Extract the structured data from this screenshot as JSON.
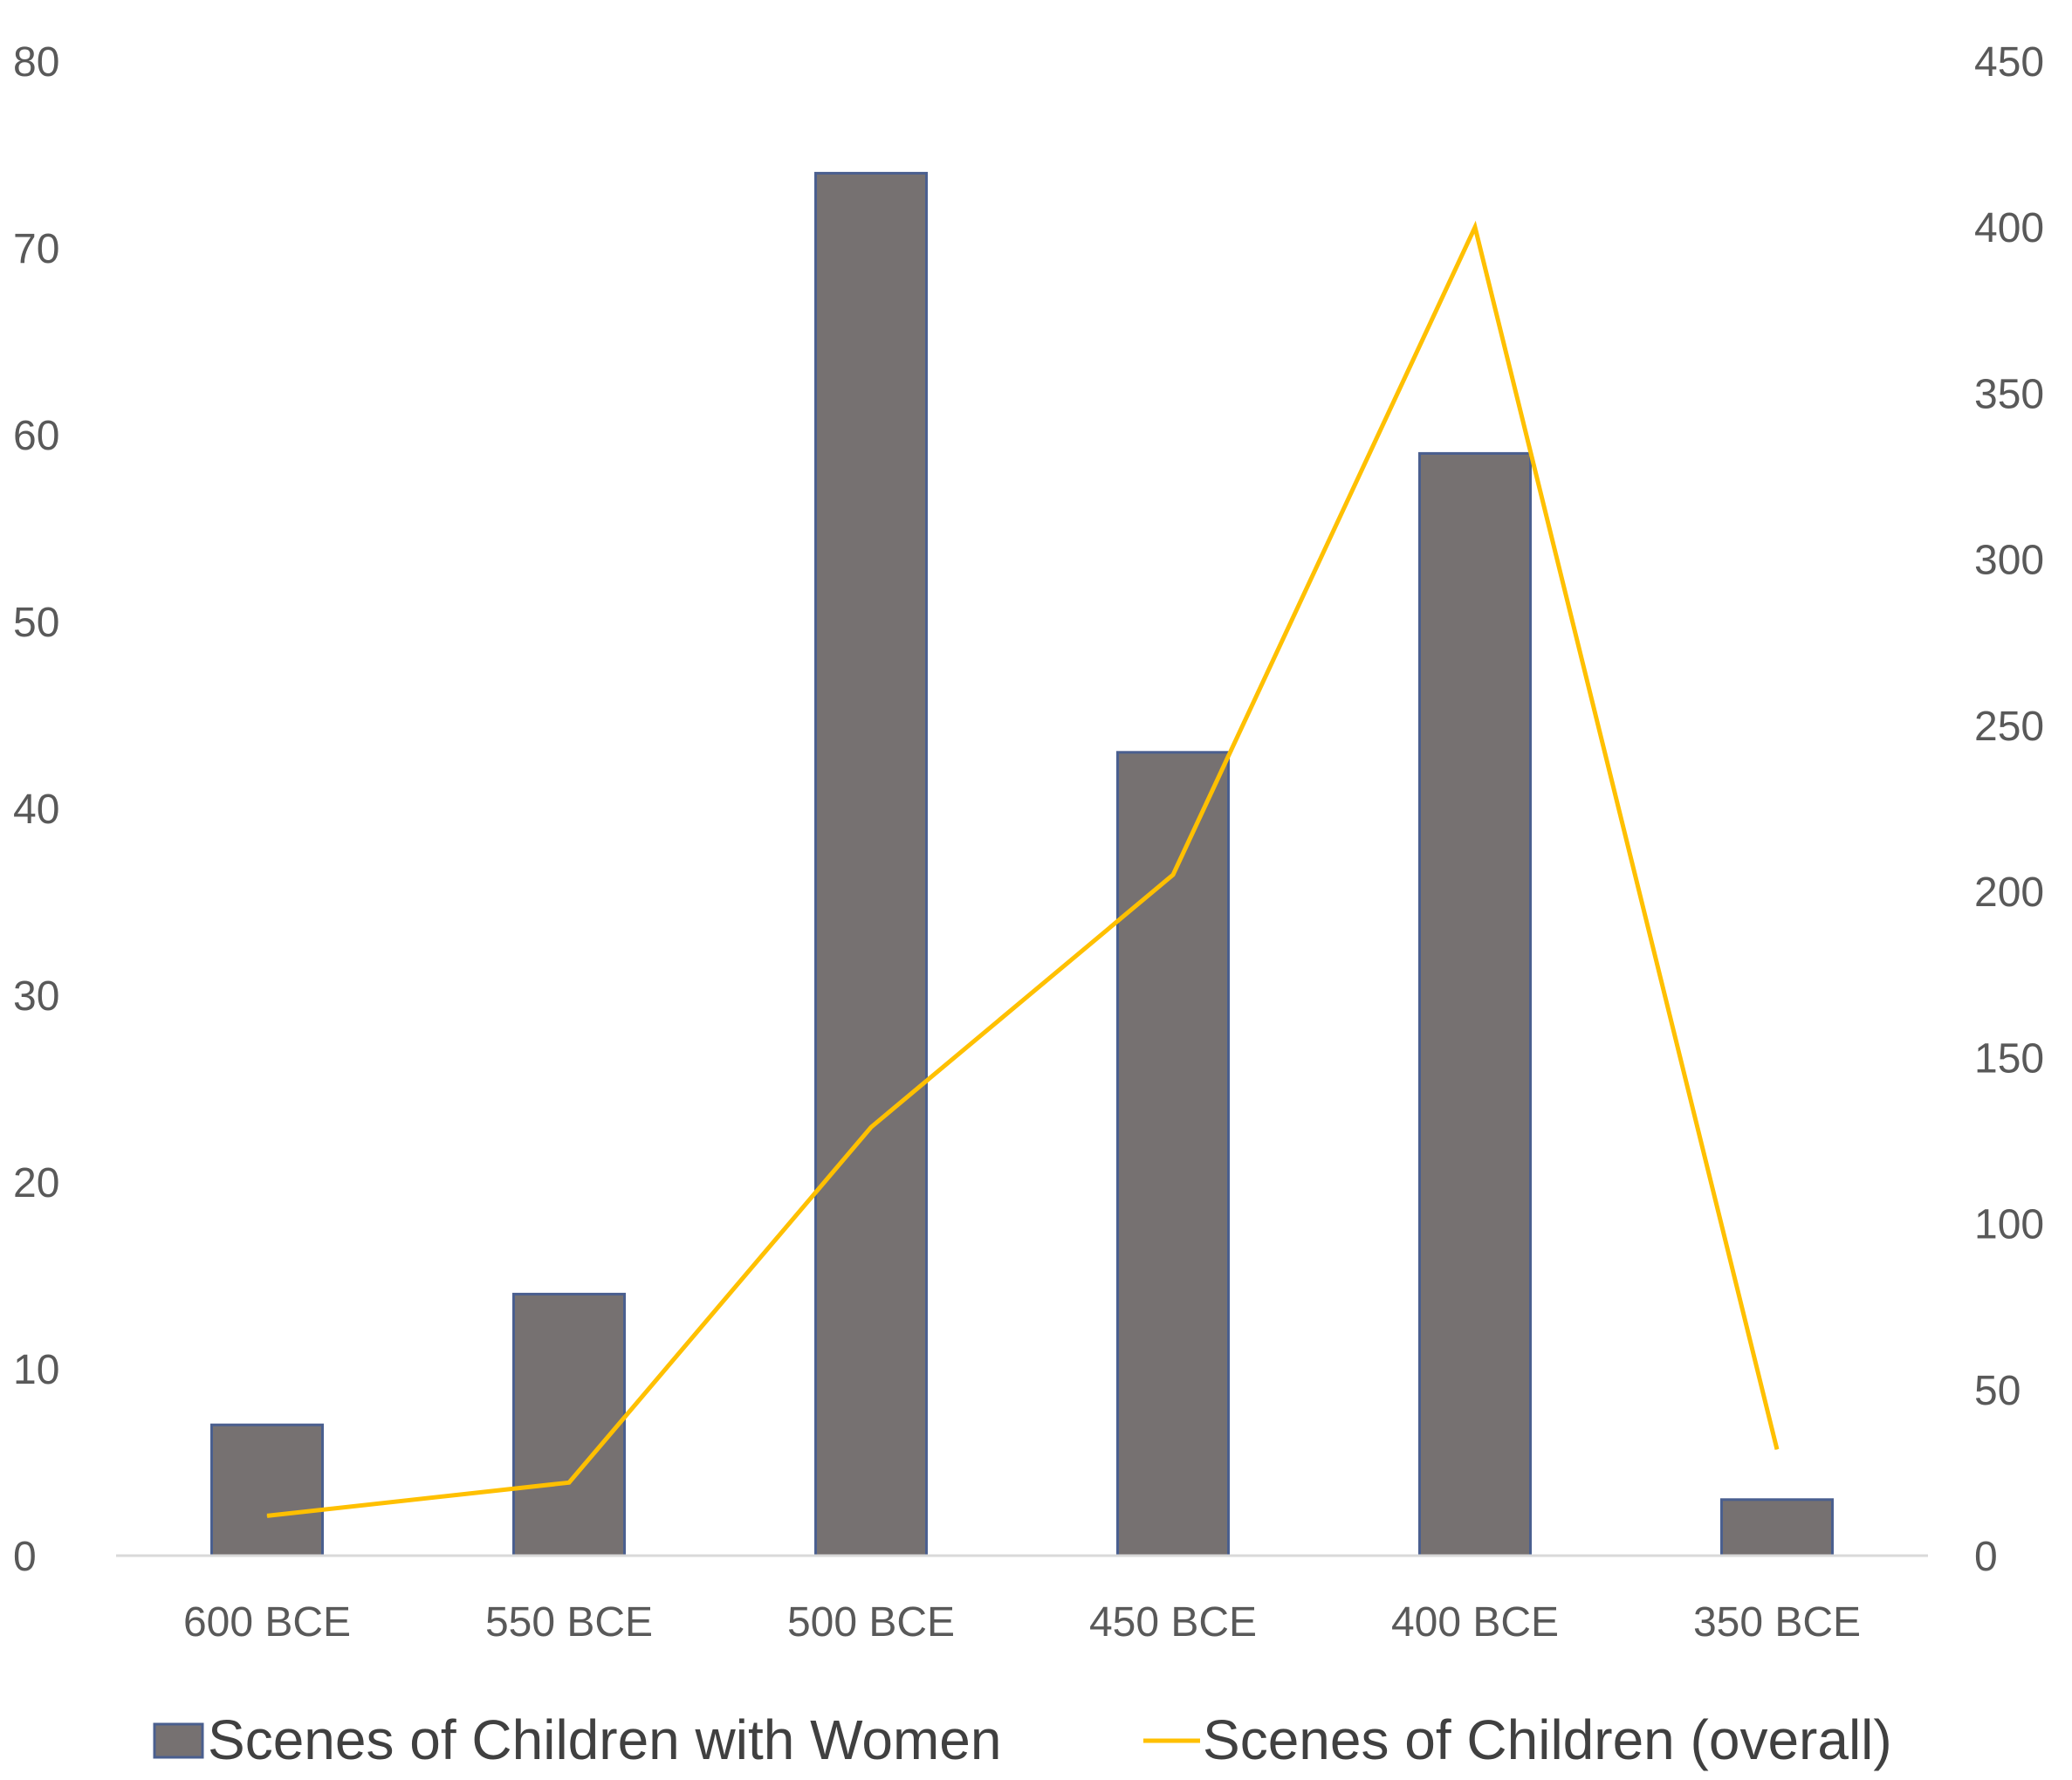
{
  "chart_data": {
    "type": "bar",
    "title": "",
    "xlabel": "",
    "ylabel": "",
    "categories": [
      "600 BCE",
      "550 BCE",
      "500 BCE",
      "450 BCE",
      "400 BCE",
      "350 BCE"
    ],
    "ylim": [
      0,
      80
    ],
    "yticks": [
      "0",
      "10",
      "20",
      "30",
      "40",
      "50",
      "60",
      "70",
      "80"
    ],
    "y2lim": [
      0,
      450
    ],
    "y2ticks": [
      "0",
      "50",
      "100",
      "150",
      "200",
      "250",
      "300",
      "350",
      "400",
      "450"
    ],
    "grid": false,
    "legend_position": "bottom",
    "series": [
      {
        "name": "Scenes of Children with Women",
        "type": "bar",
        "axis": "left",
        "color": "#767171",
        "edge_color": "#4a5f8f",
        "values": [
          7,
          14,
          74,
          43,
          59,
          3
        ]
      },
      {
        "name": "Scenes of Children (overall)",
        "type": "line",
        "axis": "right",
        "color": "#FFC000",
        "values": [
          12,
          22,
          129,
          205,
          400,
          32
        ]
      }
    ]
  }
}
